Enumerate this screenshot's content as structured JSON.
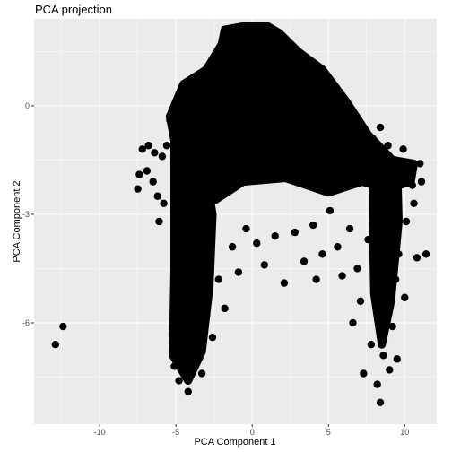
{
  "chart_data": {
    "type": "scatter",
    "title": "PCA projection",
    "xlabel": "PCA Component 1",
    "ylabel": "PCA Component 2",
    "xlim": [
      -14.3,
      12.1
    ],
    "ylim": [
      -8.8,
      2.4
    ],
    "x_ticks": [
      -10,
      -5,
      0,
      5,
      10
    ],
    "x_tick_labels": [
      "-10",
      "-5",
      "0",
      "5",
      "10"
    ],
    "y_ticks": [
      0,
      -3,
      -6
    ],
    "y_tick_labels": [
      "0",
      "-3",
      "-6"
    ],
    "grid": true,
    "background": "#ebebeb",
    "point_color": "#000000",
    "points": [
      [
        -12.9,
        -6.6
      ],
      [
        -12.4,
        -6.1
      ],
      [
        -7.5,
        -2.3
      ],
      [
        -7.4,
        -1.9
      ],
      [
        -7.2,
        -1.2
      ],
      [
        -6.9,
        -1.8
      ],
      [
        -6.8,
        -1.1
      ],
      [
        -6.5,
        -2.1
      ],
      [
        -6.4,
        -1.3
      ],
      [
        -6.2,
        -2.5
      ],
      [
        -6.1,
        -3.2
      ],
      [
        -5.9,
        -1.4
      ],
      [
        -5.8,
        -2.7
      ],
      [
        -5.6,
        -1.1
      ],
      [
        -5.4,
        -0.4
      ],
      [
        -5.1,
        -0.6
      ],
      [
        -5.1,
        -3.9
      ],
      [
        -5.0,
        -5.1
      ],
      [
        -5.2,
        -6.3
      ],
      [
        -5.1,
        -7.2
      ],
      [
        -4.8,
        -7.6
      ],
      [
        -4.6,
        -6.8
      ],
      [
        -4.4,
        -5.6
      ],
      [
        -4.2,
        -7.9
      ],
      [
        -4.0,
        -7.3
      ],
      [
        -3.8,
        -6.1
      ],
      [
        -3.6,
        -6.9
      ],
      [
        -3.4,
        -5.2
      ],
      [
        -3.3,
        -7.4
      ],
      [
        -3.0,
        -5.8
      ],
      [
        -2.6,
        -6.4
      ],
      [
        -2.2,
        -4.8
      ],
      [
        -1.8,
        -5.6
      ],
      [
        -1.3,
        -3.9
      ],
      [
        -0.9,
        -4.6
      ],
      [
        -0.4,
        -3.4
      ],
      [
        0.3,
        -3.8
      ],
      [
        0.8,
        -4.4
      ],
      [
        1.5,
        -3.6
      ],
      [
        2.1,
        -4.9
      ],
      [
        2.8,
        -3.5
      ],
      [
        3.4,
        -4.3
      ],
      [
        4.0,
        -3.3
      ],
      [
        4.6,
        -4.1
      ],
      [
        4.2,
        -4.8
      ],
      [
        5.1,
        -2.9
      ],
      [
        5.6,
        -3.9
      ],
      [
        5.9,
        -4.7
      ],
      [
        6.4,
        -3.4
      ],
      [
        6.6,
        -6.0
      ],
      [
        6.9,
        -4.5
      ],
      [
        7.1,
        -5.4
      ],
      [
        7.3,
        -7.4
      ],
      [
        7.6,
        -3.7
      ],
      [
        7.8,
        -6.6
      ],
      [
        8.0,
        -5.0
      ],
      [
        8.2,
        -7.7
      ],
      [
        8.4,
        -8.2
      ],
      [
        8.6,
        -6.9
      ],
      [
        8.8,
        -5.6
      ],
      [
        9.0,
        -7.3
      ],
      [
        9.2,
        -6.1
      ],
      [
        9.4,
        -4.8
      ],
      [
        9.5,
        -7.0
      ],
      [
        9.6,
        -4.1
      ],
      [
        10.0,
        -5.3
      ],
      [
        10.1,
        -3.2
      ],
      [
        10.6,
        -2.7
      ],
      [
        11.1,
        -2.1
      ],
      [
        11.0,
        -1.6
      ],
      [
        10.8,
        -4.2
      ],
      [
        11.4,
        -4.1
      ],
      [
        10.5,
        -2.2
      ],
      [
        9.9,
        -1.2
      ],
      [
        9.4,
        -1.5
      ],
      [
        8.9,
        -1.1
      ],
      [
        8.4,
        -0.6
      ],
      [
        7.9,
        -0.9
      ]
    ]
  }
}
